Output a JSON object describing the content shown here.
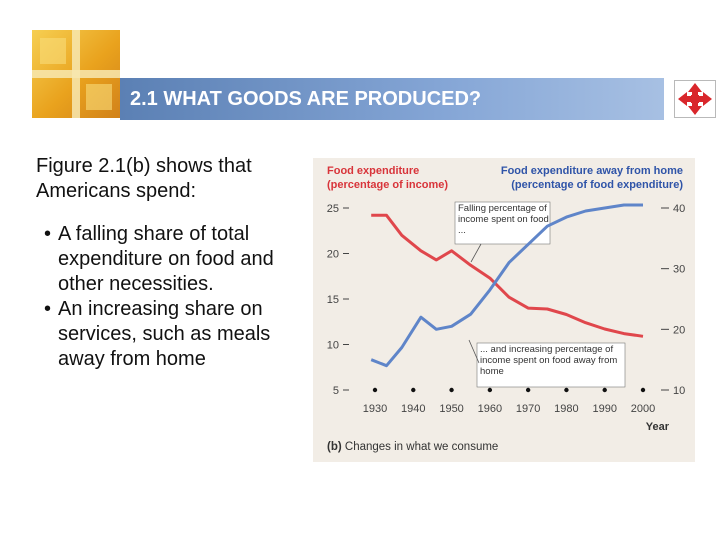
{
  "header": {
    "title": "2.1 WHAT GOODS ARE PRODUCED?",
    "nav_icon": "red-compass-arrows-icon"
  },
  "content": {
    "intro": "Figure 2.1(b) shows that Americans spend:",
    "bullets": [
      {
        "marker": "•",
        "text": "A falling share of total expenditure on food and other necessities."
      },
      {
        "marker": "•",
        "text": "An increasing share on services, such as meals away from home"
      }
    ]
  },
  "colors": {
    "title_bar": "#6f93c6",
    "food_line": "#e0474c",
    "away_line": "#5f85c9",
    "chart_header_red": "#d8343a",
    "chart_header_blue": "#2f54a8",
    "panel_bg": "#f2ede6"
  },
  "chart_data": {
    "type": "line",
    "left_axis_label": "Food expenditure",
    "left_axis_sublabel": "(percentage of income)",
    "right_axis_label": "Food expenditure away from home",
    "right_axis_sublabel": "(percentage of food expenditure)",
    "xlabel": "Year",
    "x_ticks": [
      1930,
      1940,
      1950,
      1960,
      1970,
      1980,
      1990,
      2000
    ],
    "left_ticks": [
      5,
      10,
      15,
      20,
      25
    ],
    "right_ticks": [
      10,
      20,
      30,
      40
    ],
    "left_ylim": [
      5,
      25
    ],
    "right_ylim": [
      10,
      40
    ],
    "xlim": [
      1930,
      2000
    ],
    "series": [
      {
        "axis": "left",
        "x": [
          1929,
          1933,
          1937,
          1942,
          1946,
          1950,
          1955,
          1960,
          1965,
          1970,
          1975,
          1980,
          1985,
          1990,
          1995,
          2000
        ],
        "values": [
          24.2,
          24.2,
          22.0,
          20.3,
          19.3,
          20.3,
          18.7,
          17.3,
          15.2,
          14.0,
          13.9,
          13.3,
          12.4,
          11.7,
          11.2,
          10.9
        ]
      },
      {
        "axis": "right",
        "x": [
          1929,
          1933,
          1937,
          1942,
          1946,
          1950,
          1955,
          1960,
          1965,
          1970,
          1975,
          1980,
          1985,
          1990,
          1995,
          2000
        ],
        "values": [
          15.0,
          14.0,
          17.0,
          22.0,
          20.0,
          20.5,
          22.5,
          26.5,
          31.0,
          34.0,
          37.0,
          38.5,
          39.5,
          40.0,
          40.5,
          40.5
        ]
      }
    ],
    "annotations": [
      {
        "text": "Falling percentage of income spent on food ..."
      },
      {
        "text": "... and increasing percentage of income spent on food away from home"
      }
    ],
    "caption_prefix": "(b)",
    "caption_text": "Changes in what we consume"
  }
}
